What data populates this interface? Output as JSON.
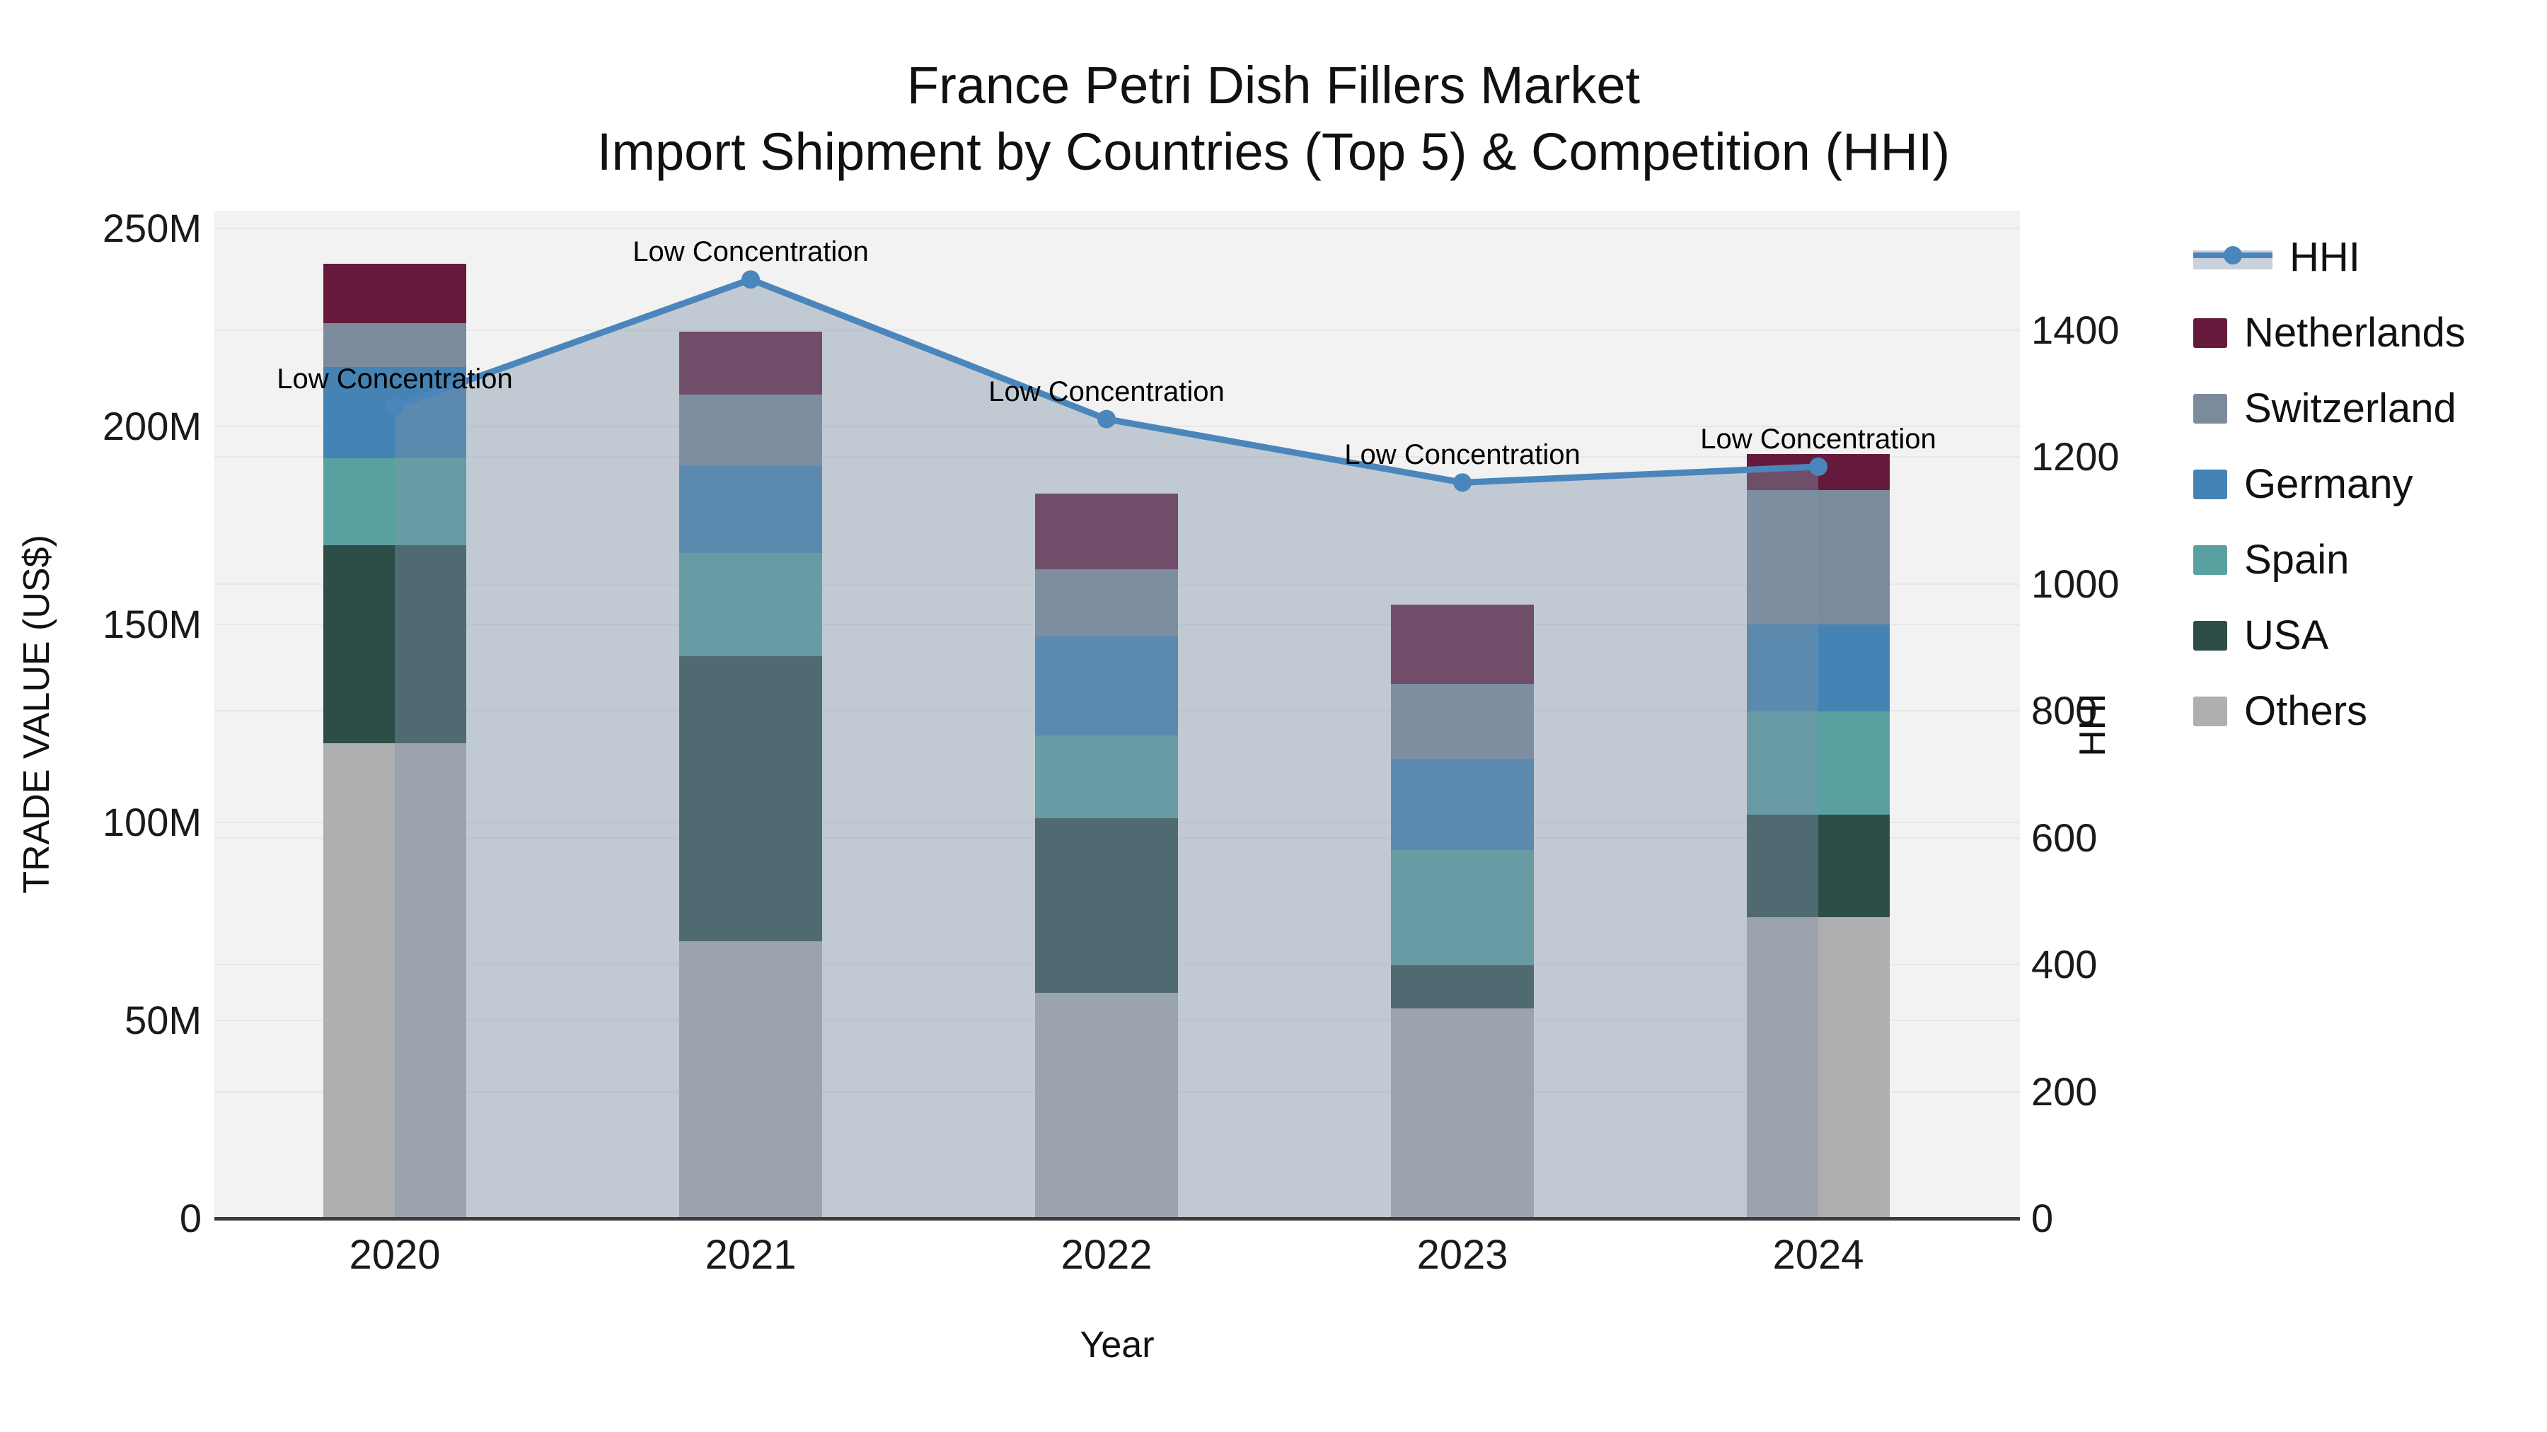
{
  "title": {
    "line1": "France Petri Dish Fillers Market",
    "line2": "Import Shipment by Countries (Top 5) & Competition (HHI)"
  },
  "axes": {
    "left": {
      "title": "TRADE VALUE (US$)",
      "tick_labels": [
        "0",
        "50M",
        "100M",
        "150M",
        "200M",
        "250M"
      ],
      "tick_values": [
        0,
        50,
        100,
        150,
        200,
        250
      ]
    },
    "right": {
      "title": "HHI",
      "tick_labels": [
        "0",
        "200",
        "400",
        "600",
        "800",
        "1000",
        "1200",
        "1400"
      ],
      "tick_values": [
        0,
        200,
        400,
        600,
        800,
        1000,
        1200,
        1400
      ]
    },
    "x": {
      "title": "Year"
    }
  },
  "chart_data": {
    "type": "bar",
    "subtype": "stacked-bars-with-line-area-overlay",
    "categories": [
      "2020",
      "2021",
      "2022",
      "2023",
      "2024"
    ],
    "ylabel": "TRADE VALUE (US$)",
    "y2label": "HHI",
    "ylim": [
      0,
      254
    ],
    "y2lim": [
      0,
      1588
    ],
    "grid": true,
    "series": [
      {
        "name": "Others",
        "color": "#afafb1",
        "values": [
          120,
          70,
          57,
          53,
          76
        ]
      },
      {
        "name": "USA",
        "color": "#2d4d48",
        "values": [
          50,
          72,
          44,
          11,
          26
        ]
      },
      {
        "name": "Spain",
        "color": "#5aa0a1",
        "values": [
          22,
          26,
          21,
          29,
          26
        ]
      },
      {
        "name": "Germany",
        "color": "#4483b4",
        "values": [
          23,
          22,
          25,
          23,
          22
        ]
      },
      {
        "name": "Switzerland",
        "color": "#7c8b9c",
        "values": [
          11,
          18,
          17,
          19,
          34
        ]
      },
      {
        "name": "Netherlands",
        "color": "#661a3b",
        "values": [
          15,
          16,
          19,
          20,
          9
        ]
      }
    ],
    "totals": [
      241,
      224,
      183,
      155,
      193
    ],
    "hhi_line": {
      "name": "HHI",
      "color": "#4a86bb",
      "area_color": "rgba(126,147,170,0.42)",
      "values": [
        1280,
        1480,
        1260,
        1160,
        1185
      ]
    },
    "annotations": [
      {
        "text": "Low Concentration",
        "category": "2020"
      },
      {
        "text": "Low Concentration",
        "category": "2021"
      },
      {
        "text": "Low Concentration",
        "category": "2022"
      },
      {
        "text": "Low Concentration",
        "category": "2023"
      },
      {
        "text": "Low Concentration",
        "category": "2024"
      }
    ],
    "legend_position": "right"
  },
  "legend": {
    "items": [
      {
        "label": "HHI",
        "type": "line",
        "color": "#4a86bb"
      },
      {
        "label": "Netherlands",
        "type": "box",
        "color": "#661a3b"
      },
      {
        "label": "Switzerland",
        "type": "box",
        "color": "#7c8b9c"
      },
      {
        "label": "Germany",
        "type": "box",
        "color": "#4483b4"
      },
      {
        "label": "Spain",
        "type": "box",
        "color": "#5aa0a1"
      },
      {
        "label": "USA",
        "type": "box",
        "color": "#2d4d48"
      },
      {
        "label": "Others",
        "type": "box",
        "color": "#afafb1"
      }
    ]
  },
  "colors": {
    "plot_bg": "#f2f2f2",
    "grid": "#e7e7e7",
    "axis_line": "#3c3c3c",
    "text": "#1a1a1a"
  }
}
